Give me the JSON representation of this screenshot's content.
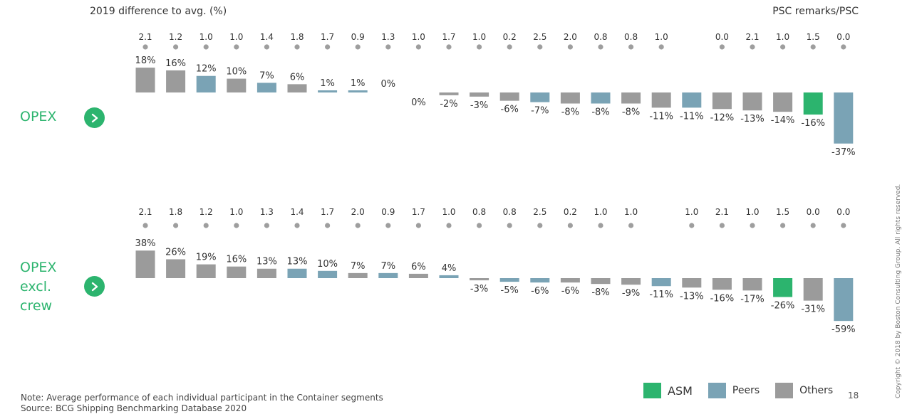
{
  "y_axis_title": "2019 difference to avg. (%)",
  "psc_title": "PSC remarks/PSC",
  "panels": [
    {
      "label_lines": [
        "OPEX"
      ],
      "arrow_icon": "chevron-right-icon"
    },
    {
      "label_lines": [
        "OPEX",
        "excl.",
        "crew"
      ],
      "arrow_icon": "chevron-right-icon"
    }
  ],
  "note": "Note: Average performance of each individual participant in the Container segments",
  "source": "Source: BCG Shipping Benchmarking Database 2020",
  "legend": [
    {
      "label": "ASM",
      "group": "asm"
    },
    {
      "label": "Peers",
      "group": "peer"
    },
    {
      "label": "Others",
      "group": "other"
    }
  ],
  "page_number": "18",
  "copyright": "Copyright © 2018 by Boston Consulting Group. All rights reserved.",
  "colors": {
    "asm": "#2cb46e",
    "peer": "#7aa3b5",
    "other": "#9b9b9b",
    "dot": "#9e9e9e",
    "accent": "#2cb46e"
  },
  "chart_data": [
    {
      "type": "bar",
      "title": "OPEX",
      "ylabel": "2019 difference to avg. (%)",
      "values": [
        18,
        16,
        12,
        10,
        7,
        6,
        1,
        1,
        0,
        0,
        -2,
        -3,
        -6,
        -7,
        -8,
        -8,
        -8,
        -11,
        -11,
        -12,
        -13,
        -14,
        -16,
        -37
      ],
      "value_labels": [
        "18%",
        "16%",
        "12%",
        "10%",
        "7%",
        "6%",
        "1%",
        "1%",
        "0%",
        "0%",
        "-2%",
        "-3%",
        "-6%",
        "-7%",
        "-8%",
        "-8%",
        "-8%",
        "-11%",
        "-11%",
        "-12%",
        "-13%",
        "-14%",
        "-16%",
        "-37%"
      ],
      "groups": [
        "other",
        "other",
        "peer",
        "other",
        "peer",
        "other",
        "peer",
        "peer",
        "other",
        "other",
        "other",
        "other",
        "other",
        "peer",
        "other",
        "peer",
        "other",
        "other",
        "peer",
        "other",
        "other",
        "other",
        "asm",
        "peer"
      ],
      "psc_remarks": [
        "2.1",
        "1.2",
        "1.0",
        "1.0",
        "1.4",
        "1.8",
        "1.7",
        "0.9",
        "1.3",
        "1.0",
        "1.7",
        "1.0",
        "0.2",
        "2.5",
        "2.0",
        "0.8",
        "0.8",
        "1.0",
        "",
        "0.0",
        "2.1",
        "1.0",
        "1.5",
        "0.0"
      ]
    },
    {
      "type": "bar",
      "title": "OPEX excl. crew",
      "ylabel": "2019 difference to avg. (%)",
      "values": [
        38,
        26,
        19,
        16,
        13,
        13,
        10,
        7,
        7,
        6,
        4,
        -3,
        -5,
        -6,
        -6,
        -8,
        -9,
        -11,
        -13,
        -16,
        -17,
        -26,
        -31,
        -59
      ],
      "value_labels": [
        "38%",
        "26%",
        "19%",
        "16%",
        "13%",
        "13%",
        "10%",
        "7%",
        "7%",
        "6%",
        "4%",
        "-3%",
        "-5%",
        "-6%",
        "-6%",
        "-8%",
        "-9%",
        "-11%",
        "-13%",
        "-16%",
        "-17%",
        "-26%",
        "-31%",
        "-59%"
      ],
      "groups": [
        "other",
        "other",
        "other",
        "other",
        "other",
        "peer",
        "peer",
        "other",
        "peer",
        "other",
        "peer",
        "other",
        "peer",
        "peer",
        "other",
        "other",
        "other",
        "peer",
        "other",
        "other",
        "other",
        "asm",
        "other",
        "peer"
      ],
      "psc_remarks": [
        "2.1",
        "1.8",
        "1.2",
        "1.0",
        "1.3",
        "1.4",
        "1.7",
        "2.0",
        "0.9",
        "1.7",
        "1.0",
        "0.8",
        "0.8",
        "2.5",
        "0.2",
        "1.0",
        "1.0",
        "",
        "1.0",
        "2.1",
        "1.0",
        "1.5",
        "0.0",
        "0.0"
      ]
    }
  ]
}
